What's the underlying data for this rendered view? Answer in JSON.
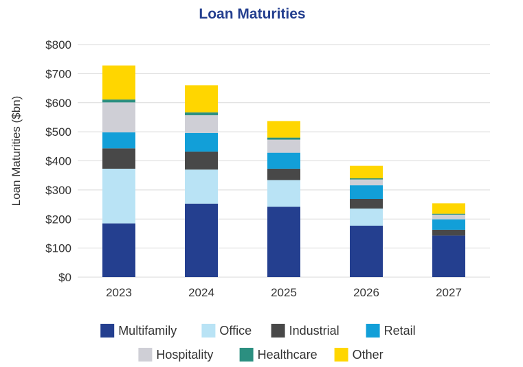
{
  "chart_data": {
    "type": "bar",
    "stacked": true,
    "title": "Loan Maturities",
    "xlabel": "",
    "ylabel": "Loan Maturities ($bn)",
    "ylim": [
      0,
      800
    ],
    "yticks": [
      "$0",
      "$100",
      "$200",
      "$300",
      "$400",
      "$500",
      "$600",
      "$700",
      "$800"
    ],
    "categories": [
      "2023",
      "2024",
      "2025",
      "2026",
      "2027"
    ],
    "grid": true,
    "legend_position": "bottom",
    "series": [
      {
        "name": "Multifamily",
        "color": "#243F8F",
        "values": [
          185,
          253,
          242,
          177,
          143
        ]
      },
      {
        "name": "Office",
        "color": "#B9E3F5",
        "values": [
          188,
          117,
          92,
          59,
          0
        ]
      },
      {
        "name": "Industrial",
        "color": "#484848",
        "values": [
          70,
          62,
          39,
          33,
          20
        ]
      },
      {
        "name": "Retail",
        "color": "#129FD8",
        "values": [
          55,
          64,
          55,
          47,
          36
        ]
      },
      {
        "name": "Hospitality",
        "color": "#CFCFD6",
        "values": [
          103,
          61,
          45,
          20,
          16
        ]
      },
      {
        "name": "Healthcare",
        "color": "#2B8F80",
        "values": [
          10,
          10,
          7,
          4,
          3
        ]
      },
      {
        "name": "Other",
        "color": "#FFD600",
        "values": [
          117,
          93,
          57,
          43,
          36
        ]
      }
    ]
  }
}
